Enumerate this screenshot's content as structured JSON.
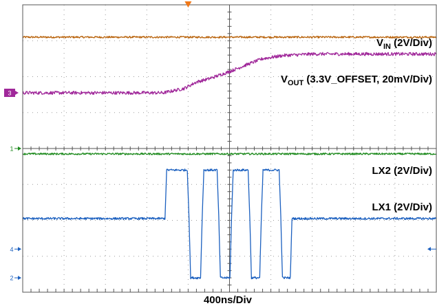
{
  "chart_data": {
    "type": "line",
    "title": "",
    "xlabel": "400ns/Div",
    "ylabel": "",
    "grid": true,
    "xlim": [
      0,
      10
    ],
    "ylim": [
      -4,
      4
    ],
    "series": [
      {
        "name": "VIN (2V/Div)",
        "label_main": "V",
        "label_sub": "IN",
        "label_tail": " (2V/Div)",
        "color": "#b8620a",
        "marker": "",
        "x": [
          0,
          10
        ],
        "y": [
          3.1,
          3.1
        ],
        "noise": 0.025
      },
      {
        "name": "VOUT (3.3V_OFFSET, 20mV/Div)",
        "label_main": "V",
        "label_sub": "OUT",
        "label_tail": " (3.3V_OFFSET, 20mV/Div)",
        "color": "#a0289a",
        "marker": "3",
        "x": [
          0,
          3.4,
          3.9,
          4.2,
          4.5,
          5.0,
          5.3,
          5.5,
          5.8,
          6.3,
          7.0,
          8.0,
          10.0
        ],
        "y": [
          1.55,
          1.55,
          1.67,
          1.85,
          1.94,
          2.14,
          2.28,
          2.37,
          2.5,
          2.59,
          2.63,
          2.63,
          2.63
        ],
        "noise": 0.045
      },
      {
        "name": "LX2 (2V/Div)",
        "label_main": "LX2 (2V/Div)",
        "label_sub": "",
        "label_tail": "",
        "color": "#1e8a1e",
        "marker": "1",
        "x": [
          0,
          10
        ],
        "y": [
          -0.15,
          -0.15
        ],
        "noise": 0.025
      },
      {
        "name": "LX1 (2V/Div)",
        "label_main": "LX1 (2V/Div)",
        "label_sub": "",
        "label_tail": "",
        "color": "#1a5fbf",
        "marker": "4",
        "x": [
          0,
          3.44,
          3.48,
          3.52,
          3.98,
          4.02,
          4.06,
          4.3,
          4.34,
          4.38,
          4.7,
          4.74,
          4.78,
          5.01,
          5.05,
          5.09,
          5.45,
          5.49,
          5.53,
          5.73,
          5.77,
          5.81,
          6.2,
          6.24,
          6.28,
          6.47,
          6.51,
          6.55,
          10.0
        ],
        "y": [
          -1.95,
          -1.95,
          -0.6,
          -0.6,
          -0.6,
          -1.9,
          -3.6,
          -3.6,
          -1.9,
          -0.6,
          -0.6,
          -1.9,
          -3.6,
          -3.6,
          -1.9,
          -0.6,
          -0.6,
          -1.9,
          -3.6,
          -3.6,
          -1.9,
          -0.6,
          -0.6,
          -1.9,
          -3.6,
          -3.6,
          -1.95,
          -1.95,
          -1.95
        ],
        "noise": 0.03
      }
    ],
    "extra_markers": [
      {
        "text": "2",
        "color": "#1a5fbf",
        "y": -3.6
      }
    ],
    "trigger_color": "#f07818",
    "right_marker_color": "#1a5fbf"
  }
}
